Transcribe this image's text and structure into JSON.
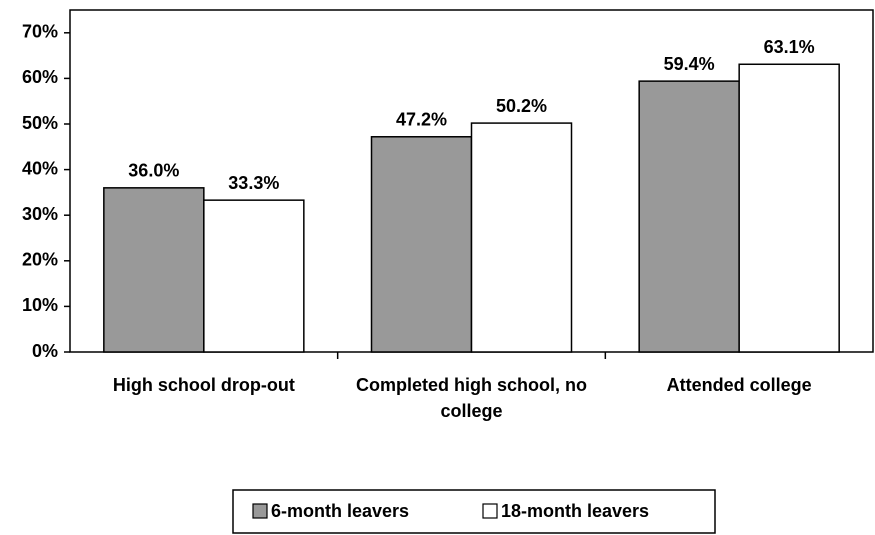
{
  "chart_data": {
    "type": "bar",
    "categories": [
      "High school drop-out",
      "Completed high school, no college",
      "Attended college"
    ],
    "series": [
      {
        "name": "6-month leavers",
        "color": "#999999",
        "values": [
          36.0,
          47.2,
          59.4
        ],
        "value_labels": [
          "36.0%",
          "47.2%",
          "59.4%"
        ]
      },
      {
        "name": "18-month leavers",
        "color": "#ffffff",
        "values": [
          33.3,
          50.2,
          63.1
        ],
        "value_labels": [
          "33.3%",
          "50.2%",
          "63.1%"
        ]
      }
    ],
    "ylim": [
      0,
      75
    ],
    "yticks": [
      {
        "value": 0,
        "label": "0%"
      },
      {
        "value": 10,
        "label": "10%"
      },
      {
        "value": 20,
        "label": "20%"
      },
      {
        "value": 30,
        "label": "30%"
      },
      {
        "value": 40,
        "label": "40%"
      },
      {
        "value": 50,
        "label": "50%"
      },
      {
        "value": 60,
        "label": "60%"
      },
      {
        "value": 70,
        "label": "70%"
      }
    ],
    "grid": false,
    "legend": "bottom"
  }
}
